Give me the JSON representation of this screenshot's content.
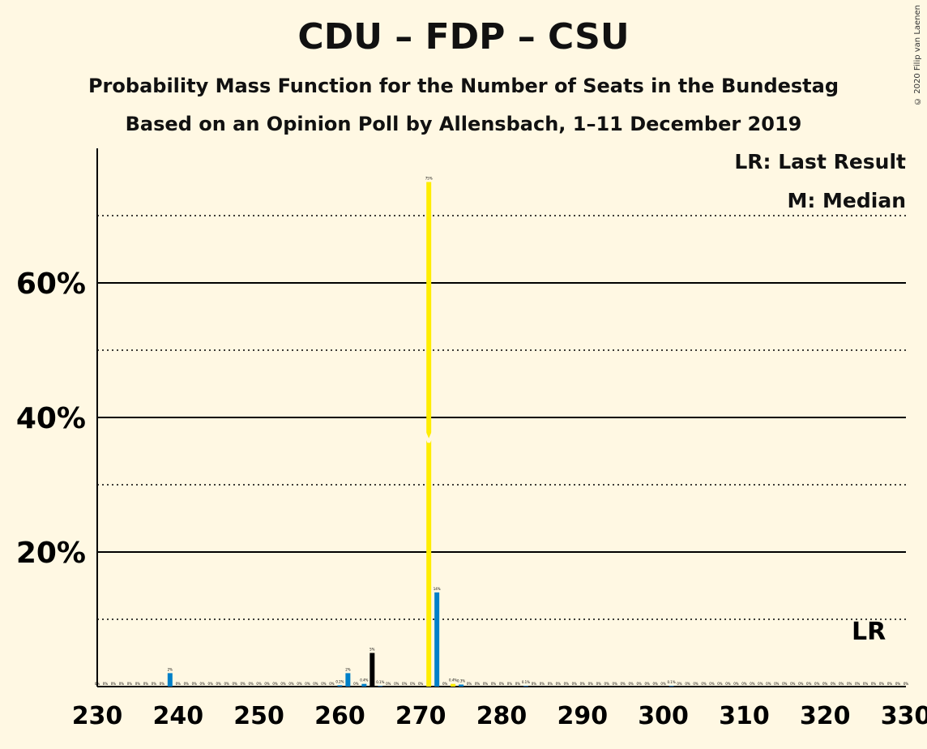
{
  "title": "CDU – FDP – CSU",
  "subtitle": "Probability Mass Function for the Number of Seats in the Bundestag",
  "subtitle2": "Based on an Opinion Poll by Allensbach, 1–11 December 2019",
  "copyright": "© 2020 Filip van Laenen",
  "legend": {
    "last_result": "LR: Last Result",
    "median": "M: Median"
  },
  "last_result_marker": "LR",
  "median_marker": "M",
  "colors": {
    "background": "#FFF8E3",
    "cdu": "#000000",
    "fdp": "#FFED00",
    "csu": "#0080C8"
  },
  "chart_data": {
    "type": "bar",
    "xlim": [
      230,
      330
    ],
    "ylim": [
      0,
      80
    ],
    "x_ticks": [
      230,
      240,
      250,
      260,
      270,
      280,
      290,
      300,
      310,
      320,
      330
    ],
    "y_tick_labels": [
      {
        "value": 20,
        "label": "20%"
      },
      {
        "value": 40,
        "label": "40%"
      },
      {
        "value": 60,
        "label": "60%"
      }
    ],
    "gridlines_solid": [
      20,
      40,
      60
    ],
    "gridlines_dotted": [
      10,
      30,
      50,
      70
    ],
    "median": 271,
    "last_result": 326,
    "bars": [
      {
        "seats": 239,
        "value": 2,
        "label": "2%"
      },
      {
        "seats": 260,
        "value": 0.2,
        "label": "0.2%"
      },
      {
        "seats": 261,
        "value": 2,
        "label": "2%"
      },
      {
        "seats": 263,
        "value": 0.4,
        "label": "0.4%"
      },
      {
        "seats": 264,
        "value": 5,
        "label": "5%"
      },
      {
        "seats": 265,
        "value": 0.1,
        "label": "0.1%"
      },
      {
        "seats": 271,
        "value": 75,
        "label": "75%"
      },
      {
        "seats": 272,
        "value": 14,
        "label": "14%"
      },
      {
        "seats": 274,
        "value": 0.4,
        "label": "0.4%"
      },
      {
        "seats": 275,
        "value": 0.3,
        "label": "0.3%"
      },
      {
        "seats": 283,
        "value": 0.1,
        "label": "0.1%"
      },
      {
        "seats": 301,
        "value": 0.1,
        "label": "0.1%"
      }
    ]
  }
}
